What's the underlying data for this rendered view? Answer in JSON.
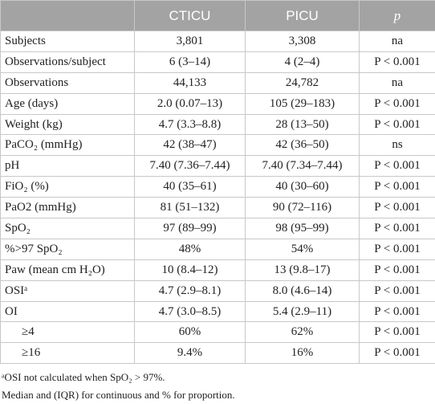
{
  "table": {
    "header": [
      "",
      "CTICU",
      "PICU",
      "p"
    ],
    "rows": [
      [
        "Subjects",
        "3,801",
        "3,308",
        "na"
      ],
      [
        "Observations/subject",
        "6 (3–14)",
        "4 (2–4)",
        "P < 0.001"
      ],
      [
        "Observations",
        "44,133",
        "24,782",
        "na"
      ],
      [
        "Age (days)",
        "2.0 (0.07–13)",
        "105 (29–183)",
        "P < 0.001"
      ],
      [
        "Weight (kg)",
        "4.7 (3.3–8.8)",
        "28 (13–50)",
        "P < 0.001"
      ],
      [
        "PaCO₂ (mmHg)",
        "42 (38–47)",
        "42 (36–50)",
        "ns"
      ],
      [
        "pH",
        "7.40 (7.36–7.44)",
        "7.40 (7.34–7.44)",
        "P < 0.001"
      ],
      [
        "FiO₂ (%)",
        "40 (35–61)",
        "40 (30–60)",
        "P < 0.001"
      ],
      [
        "PaO2 (mmHg)",
        "81 (51–132)",
        "90 (72–116)",
        "P < 0.001"
      ],
      [
        "SpO₂",
        "97 (89–99)",
        "98 (95–99)",
        "P < 0.001"
      ],
      [
        "%>97 SpO₂",
        "48%",
        "54%",
        "P < 0.001"
      ],
      [
        "Paw (mean cm H₂O)",
        "10 (8.4–12)",
        "13 (9.8–17)",
        "P < 0.001"
      ],
      [
        "OSIᵃ",
        "4.7 (2.9–8.1)",
        "8.0 (4.6–14)",
        "P < 0.001"
      ],
      [
        "OI",
        "4.7 (3.0–8.5)",
        "5.4 (2.9–11)",
        "P < 0.001"
      ],
      [
        "≥4",
        "60%",
        "62%",
        "P < 0.001"
      ],
      [
        "≥16",
        "9.4%",
        "16%",
        "P < 0.001"
      ]
    ]
  },
  "footnotes": [
    "ᵃOSI not calculated when SpO₂ > 97%.",
    "Median and (IQR) for continuous and % for proportion."
  ]
}
